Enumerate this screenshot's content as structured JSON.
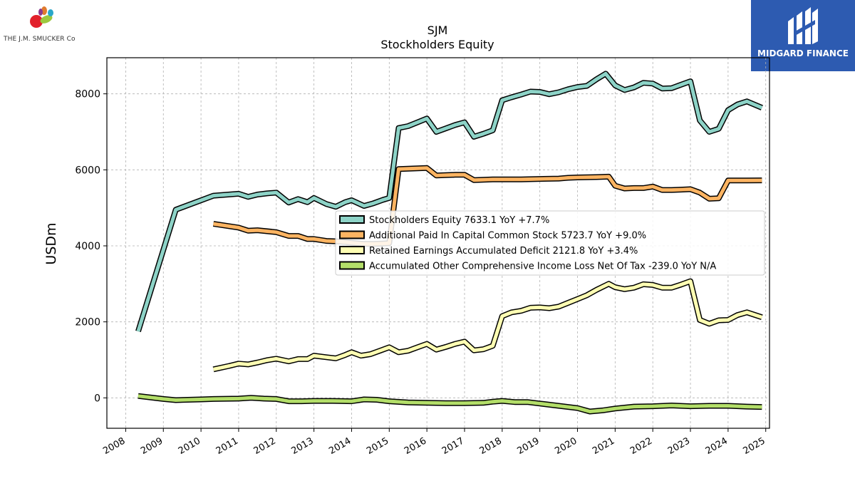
{
  "logos": {
    "left_brand": "THE J.M. SMUCKER Co",
    "right_brand": "MIDGARD FINANCE",
    "right_bg": "#2d5bb1"
  },
  "chart_data": {
    "type": "line",
    "title": "SJM",
    "subtitle": "Stockholders  Equity",
    "ylabel": "USDm",
    "xlabel": "",
    "xlim": [
      2007.5,
      2025.1
    ],
    "ylim": [
      -800,
      8950
    ],
    "xticks": [
      2008,
      2009,
      2010,
      2011,
      2012,
      2013,
      2014,
      2015,
      2016,
      2017,
      2018,
      2019,
      2020,
      2021,
      2022,
      2023,
      2024,
      2025
    ],
    "yticks": [
      0,
      2000,
      4000,
      6000,
      8000
    ],
    "grid": true,
    "legend_position": "center-right",
    "series": [
      {
        "name": "Stockholders Equity  7633.1 YoY +7.7%",
        "color": "#8dd3c7",
        "points": [
          [
            2008.33,
            1750
          ],
          [
            2009.33,
            4950
          ],
          [
            2010.33,
            5320
          ],
          [
            2011.0,
            5370
          ],
          [
            2011.25,
            5290
          ],
          [
            2011.5,
            5350
          ],
          [
            2011.75,
            5380
          ],
          [
            2012.0,
            5400
          ],
          [
            2012.33,
            5140
          ],
          [
            2012.58,
            5230
          ],
          [
            2012.83,
            5150
          ],
          [
            2013.0,
            5260
          ],
          [
            2013.33,
            5100
          ],
          [
            2013.58,
            5030
          ],
          [
            2013.83,
            5150
          ],
          [
            2014.0,
            5200
          ],
          [
            2014.33,
            5050
          ],
          [
            2014.58,
            5120
          ],
          [
            2014.83,
            5210
          ],
          [
            2015.0,
            5260
          ],
          [
            2015.25,
            7100
          ],
          [
            2015.5,
            7150
          ],
          [
            2015.75,
            7250
          ],
          [
            2016.0,
            7350
          ],
          [
            2016.25,
            7000
          ],
          [
            2016.5,
            7090
          ],
          [
            2016.75,
            7180
          ],
          [
            2017.0,
            7250
          ],
          [
            2017.25,
            6870
          ],
          [
            2017.5,
            6950
          ],
          [
            2017.75,
            7040
          ],
          [
            2018.0,
            7830
          ],
          [
            2018.25,
            7910
          ],
          [
            2018.5,
            7980
          ],
          [
            2018.75,
            8060
          ],
          [
            2019.0,
            8050
          ],
          [
            2019.25,
            7990
          ],
          [
            2019.5,
            8040
          ],
          [
            2019.75,
            8120
          ],
          [
            2020.0,
            8180
          ],
          [
            2020.25,
            8210
          ],
          [
            2020.5,
            8380
          ],
          [
            2020.75,
            8530
          ],
          [
            2021.0,
            8220
          ],
          [
            2021.25,
            8100
          ],
          [
            2021.5,
            8170
          ],
          [
            2021.75,
            8290
          ],
          [
            2022.0,
            8270
          ],
          [
            2022.25,
            8140
          ],
          [
            2022.5,
            8150
          ],
          [
            2022.75,
            8240
          ],
          [
            2023.0,
            8330
          ],
          [
            2023.25,
            7300
          ],
          [
            2023.5,
            7000
          ],
          [
            2023.75,
            7080
          ],
          [
            2024.0,
            7570
          ],
          [
            2024.25,
            7720
          ],
          [
            2024.5,
            7800
          ],
          [
            2024.9,
            7633
          ]
        ]
      },
      {
        "name": "Additional Paid In Capital Common Stock  5723.7 YoY +9.0%",
        "color": "#fdb462",
        "points": [
          [
            2010.33,
            4580
          ],
          [
            2011.0,
            4480
          ],
          [
            2011.25,
            4400
          ],
          [
            2011.5,
            4410
          ],
          [
            2012.0,
            4360
          ],
          [
            2012.33,
            4260
          ],
          [
            2012.58,
            4260
          ],
          [
            2012.83,
            4180
          ],
          [
            2013.0,
            4180
          ],
          [
            2013.33,
            4130
          ],
          [
            2013.58,
            4120
          ],
          [
            2013.83,
            4100
          ],
          [
            2014.0,
            4080
          ],
          [
            2014.33,
            4050
          ],
          [
            2014.58,
            4050
          ],
          [
            2014.83,
            4060
          ],
          [
            2015.0,
            4070
          ],
          [
            2015.25,
            6020
          ],
          [
            2015.5,
            6030
          ],
          [
            2015.75,
            6040
          ],
          [
            2016.0,
            6050
          ],
          [
            2016.25,
            5850
          ],
          [
            2016.5,
            5860
          ],
          [
            2016.75,
            5870
          ],
          [
            2017.0,
            5870
          ],
          [
            2017.25,
            5730
          ],
          [
            2017.5,
            5740
          ],
          [
            2017.75,
            5750
          ],
          [
            2018.0,
            5750
          ],
          [
            2018.5,
            5750
          ],
          [
            2019.0,
            5760
          ],
          [
            2019.5,
            5770
          ],
          [
            2019.75,
            5790
          ],
          [
            2020.0,
            5800
          ],
          [
            2020.5,
            5810
          ],
          [
            2020.83,
            5820
          ],
          [
            2021.0,
            5580
          ],
          [
            2021.25,
            5510
          ],
          [
            2021.5,
            5520
          ],
          [
            2021.75,
            5520
          ],
          [
            2022.0,
            5560
          ],
          [
            2022.25,
            5470
          ],
          [
            2022.5,
            5470
          ],
          [
            2022.75,
            5480
          ],
          [
            2023.0,
            5490
          ],
          [
            2023.25,
            5400
          ],
          [
            2023.5,
            5240
          ],
          [
            2023.75,
            5250
          ],
          [
            2024.0,
            5720
          ],
          [
            2024.5,
            5720
          ],
          [
            2024.9,
            5724
          ]
        ]
      },
      {
        "name": "Retained Earnings Accumulated Deficit  2121.8 YoY +3.4%",
        "color": "#ffffb3",
        "points": [
          [
            2010.33,
            750
          ],
          [
            2010.75,
            840
          ],
          [
            2011.0,
            900
          ],
          [
            2011.25,
            880
          ],
          [
            2011.5,
            930
          ],
          [
            2011.75,
            990
          ],
          [
            2012.0,
            1030
          ],
          [
            2012.33,
            960
          ],
          [
            2012.58,
            1020
          ],
          [
            2012.83,
            1020
          ],
          [
            2013.0,
            1110
          ],
          [
            2013.33,
            1070
          ],
          [
            2013.58,
            1040
          ],
          [
            2013.83,
            1130
          ],
          [
            2014.0,
            1200
          ],
          [
            2014.25,
            1110
          ],
          [
            2014.5,
            1150
          ],
          [
            2014.75,
            1240
          ],
          [
            2015.0,
            1330
          ],
          [
            2015.25,
            1200
          ],
          [
            2015.5,
            1240
          ],
          [
            2015.75,
            1330
          ],
          [
            2016.0,
            1420
          ],
          [
            2016.25,
            1270
          ],
          [
            2016.5,
            1340
          ],
          [
            2016.75,
            1420
          ],
          [
            2017.0,
            1480
          ],
          [
            2017.25,
            1250
          ],
          [
            2017.5,
            1280
          ],
          [
            2017.75,
            1370
          ],
          [
            2018.0,
            2150
          ],
          [
            2018.25,
            2250
          ],
          [
            2018.5,
            2290
          ],
          [
            2018.75,
            2370
          ],
          [
            2019.0,
            2380
          ],
          [
            2019.25,
            2360
          ],
          [
            2019.5,
            2400
          ],
          [
            2019.75,
            2500
          ],
          [
            2020.0,
            2600
          ],
          [
            2020.25,
            2700
          ],
          [
            2020.5,
            2840
          ],
          [
            2020.83,
            3000
          ],
          [
            2021.0,
            2910
          ],
          [
            2021.25,
            2860
          ],
          [
            2021.5,
            2900
          ],
          [
            2021.75,
            2990
          ],
          [
            2022.0,
            2970
          ],
          [
            2022.25,
            2900
          ],
          [
            2022.5,
            2900
          ],
          [
            2022.75,
            2980
          ],
          [
            2023.0,
            3070
          ],
          [
            2023.25,
            2050
          ],
          [
            2023.5,
            1950
          ],
          [
            2023.75,
            2040
          ],
          [
            2024.0,
            2050
          ],
          [
            2024.25,
            2180
          ],
          [
            2024.5,
            2250
          ],
          [
            2024.9,
            2122
          ]
        ]
      },
      {
        "name": "Accumulated Other Comprehensive Income Loss Net Of Tax  -239.0 YoY N/A",
        "color": "#b3de69",
        "points": [
          [
            2008.33,
            50
          ],
          [
            2009.0,
            -30
          ],
          [
            2009.33,
            -60
          ],
          [
            2010.0,
            -40
          ],
          [
            2010.33,
            -30
          ],
          [
            2011.0,
            -20
          ],
          [
            2011.33,
            0
          ],
          [
            2011.67,
            -20
          ],
          [
            2012.0,
            -30
          ],
          [
            2012.33,
            -90
          ],
          [
            2012.67,
            -90
          ],
          [
            2013.0,
            -80
          ],
          [
            2013.5,
            -80
          ],
          [
            2014.0,
            -90
          ],
          [
            2014.33,
            -40
          ],
          [
            2014.67,
            -50
          ],
          [
            2015.0,
            -90
          ],
          [
            2015.5,
            -120
          ],
          [
            2016.0,
            -130
          ],
          [
            2016.5,
            -140
          ],
          [
            2017.0,
            -140
          ],
          [
            2017.5,
            -130
          ],
          [
            2017.75,
            -100
          ],
          [
            2018.0,
            -80
          ],
          [
            2018.33,
            -110
          ],
          [
            2018.67,
            -110
          ],
          [
            2019.0,
            -150
          ],
          [
            2019.5,
            -210
          ],
          [
            2020.0,
            -270
          ],
          [
            2020.33,
            -360
          ],
          [
            2020.67,
            -330
          ],
          [
            2021.0,
            -280
          ],
          [
            2021.5,
            -230
          ],
          [
            2022.0,
            -220
          ],
          [
            2022.5,
            -200
          ],
          [
            2023.0,
            -220
          ],
          [
            2023.5,
            -210
          ],
          [
            2024.0,
            -210
          ],
          [
            2024.5,
            -230
          ],
          [
            2024.9,
            -239
          ]
        ]
      }
    ]
  }
}
